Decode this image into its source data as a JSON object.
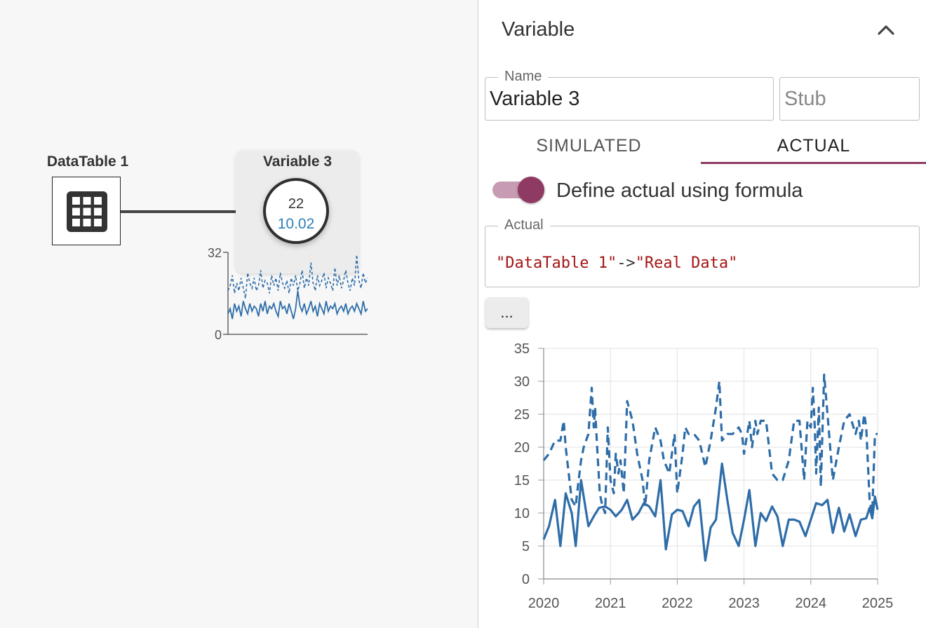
{
  "canvas": {
    "datatable": {
      "title": "DataTable 1",
      "icon": "table-grid-icon"
    },
    "variable": {
      "title": "Variable 3",
      "value_simulated": "22",
      "value_actual": "10.02"
    },
    "sparkline": {
      "ymax_label": "32",
      "ymin_label": "0",
      "ylim": [
        0,
        32
      ]
    }
  },
  "panel": {
    "title": "Variable",
    "collapse_icon": "chevron-up-icon",
    "name_legend": "Name",
    "name_value": "Variable 3",
    "stub_placeholder": "Stub",
    "tabs": [
      {
        "label": "SIMULATED",
        "active": false
      },
      {
        "label": "ACTUAL",
        "active": true
      }
    ],
    "toggle": {
      "label": "Define actual using formula",
      "on": true
    },
    "actual_legend": "Actual",
    "formula": {
      "part1": "\"DataTable 1\"",
      "op": "->",
      "part2": "\"Real Data\""
    },
    "more_button": "..."
  },
  "colors": {
    "accent": "#8e3a63",
    "series": "#2e6da8",
    "string": "#a31515"
  },
  "chart_data": {
    "type": "line",
    "xlim": [
      2020,
      2025
    ],
    "ylim": [
      0,
      35
    ],
    "x_ticks": [
      "2020",
      "2021",
      "2022",
      "2023",
      "2024",
      "2025"
    ],
    "y_ticks": [
      "0",
      "5",
      "10",
      "15",
      "20",
      "25",
      "30",
      "35"
    ],
    "grid": true,
    "series": [
      {
        "style": "dashed",
        "x": [
          2020.0,
          2020.08,
          2020.17,
          2020.25,
          2020.3,
          2020.33,
          2020.42,
          2020.48,
          2020.5,
          2020.56,
          2020.6,
          2020.67,
          2020.72,
          2020.75,
          2020.77,
          2020.8,
          2020.84,
          2020.88,
          2020.92,
          2020.96,
          2021.0,
          2021.05,
          2021.08,
          2021.12,
          2021.15,
          2021.2,
          2021.25,
          2021.33,
          2021.4,
          2021.48,
          2021.52,
          2021.58,
          2021.67,
          2021.75,
          2021.8,
          2021.88,
          2021.92,
          2021.96,
          2022.0,
          2022.08,
          2022.12,
          2022.17,
          2022.25,
          2022.33,
          2022.42,
          2022.5,
          2022.58,
          2022.63,
          2022.67,
          2022.75,
          2022.83,
          2022.92,
          2022.97,
          2023.0,
          2023.08,
          2023.12,
          2023.17,
          2023.2,
          2023.25,
          2023.33,
          2023.42,
          2023.5,
          2023.58,
          2023.67,
          2023.75,
          2023.83,
          2023.9,
          2023.95,
          2024.0,
          2024.03,
          2024.06,
          2024.08,
          2024.12,
          2024.15,
          2024.17,
          2024.2,
          2024.25,
          2024.33,
          2024.42,
          2024.5,
          2024.58,
          2024.67,
          2024.72,
          2024.75,
          2024.8,
          2024.83,
          2024.88,
          2024.92,
          2024.96,
          2025.0
        ],
        "values": [
          18,
          19,
          21,
          21,
          24,
          20,
          12,
          11,
          13,
          18,
          20,
          22,
          29,
          23,
          26,
          20,
          13,
          11,
          10,
          23,
          15,
          13,
          19,
          16,
          18,
          13,
          27,
          24,
          19,
          15,
          11,
          18,
          23,
          21,
          18,
          16,
          19,
          22,
          13,
          19,
          23,
          22,
          22,
          21,
          17,
          21,
          26,
          30,
          21,
          22,
          22,
          23,
          22,
          19,
          24,
          20,
          24,
          22,
          24,
          24,
          16,
          15,
          15,
          18,
          24,
          24,
          15,
          24,
          23,
          29,
          23,
          16,
          26,
          14,
          21,
          31,
          25,
          15,
          20,
          24,
          25,
          22,
          24,
          21,
          25,
          23,
          12,
          10,
          22,
          22
        ]
      },
      {
        "style": "solid",
        "x": [
          2020.0,
          2020.08,
          2020.17,
          2020.25,
          2020.33,
          2020.42,
          2020.48,
          2020.56,
          2020.67,
          2020.75,
          2020.83,
          2020.92,
          2021.0,
          2021.08,
          2021.17,
          2021.25,
          2021.33,
          2021.42,
          2021.5,
          2021.58,
          2021.67,
          2021.75,
          2021.83,
          2021.92,
          2022.0,
          2022.08,
          2022.17,
          2022.25,
          2022.33,
          2022.42,
          2022.5,
          2022.58,
          2022.67,
          2022.75,
          2022.83,
          2022.92,
          2023.0,
          2023.08,
          2023.17,
          2023.25,
          2023.33,
          2023.42,
          2023.5,
          2023.58,
          2023.67,
          2023.75,
          2023.83,
          2023.92,
          2024.0,
          2024.08,
          2024.17,
          2024.25,
          2024.33,
          2024.42,
          2024.5,
          2024.58,
          2024.67,
          2024.75,
          2024.83,
          2024.88,
          2024.92,
          2024.96,
          2025.0
        ],
        "values": [
          6,
          8,
          12,
          5,
          13,
          10,
          5,
          15,
          8,
          9.5,
          10.8,
          11,
          10.5,
          9.5,
          10.5,
          12,
          9,
          10,
          11.5,
          11,
          9.5,
          15,
          4.5,
          9.8,
          10.5,
          10.3,
          8,
          11,
          12,
          2.8,
          7.8,
          9,
          17.5,
          12,
          7,
          5,
          9,
          13.5,
          5,
          10,
          8.8,
          11,
          9.5,
          5,
          9,
          9,
          8.7,
          6.5,
          9,
          11.5,
          11.2,
          12,
          7,
          10.8,
          7.2,
          9.8,
          6.5,
          9,
          9.2,
          10.8,
          9.2,
          12.5,
          10.5
        ]
      }
    ]
  },
  "sparkline_data": {
    "dashed": [
      17,
      19,
      23,
      16,
      20,
      17,
      22,
      18,
      14,
      24,
      20,
      18,
      22,
      17,
      19,
      25,
      18,
      21,
      20,
      16,
      23,
      19,
      22,
      17,
      24,
      20,
      18,
      21,
      16,
      22,
      19,
      23,
      17,
      20,
      25,
      18,
      22,
      19,
      28,
      20,
      17,
      23,
      19,
      21,
      24,
      18,
      22,
      20,
      17,
      26,
      19,
      23,
      18,
      21,
      25,
      20,
      17,
      22,
      19,
      31,
      21,
      18,
      24,
      20,
      22
    ],
    "solid": [
      8,
      10,
      6,
      12,
      9,
      11,
      7,
      13,
      10,
      8,
      12,
      9,
      11,
      10,
      7,
      12,
      9,
      13,
      8,
      11,
      10,
      12,
      9,
      7,
      13,
      10,
      11,
      8,
      12,
      9,
      6,
      10,
      17,
      11,
      9,
      12,
      8,
      10,
      13,
      9,
      11,
      7,
      12,
      10,
      8,
      13,
      9,
      11,
      10,
      12,
      8,
      10,
      11,
      9,
      12,
      8,
      10,
      11,
      9,
      12,
      10,
      8,
      13,
      9,
      10
    ]
  }
}
